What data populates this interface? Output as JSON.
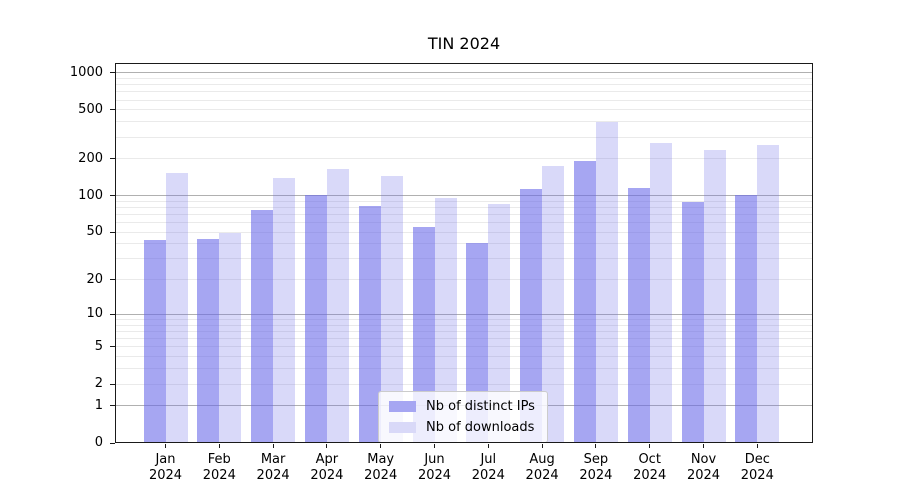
{
  "title": "TIN 2024",
  "background_color": "#ffffff",
  "chart_data": {
    "type": "bar",
    "title": "TIN 2024",
    "xlabel": "",
    "ylabel": "",
    "yscale": "log1p",
    "ylim": [
      0,
      1200
    ],
    "yticks": [
      0,
      1,
      2,
      5,
      10,
      20,
      50,
      100,
      200,
      500,
      1000
    ],
    "grid": {
      "major_gridlines": [
        1,
        10,
        100,
        1000
      ],
      "minor_multiples_per_decade": [
        2,
        3,
        4,
        5,
        6,
        7,
        8,
        9
      ],
      "minor_decades": [
        1,
        10,
        100
      ]
    },
    "categories": [
      "Jan",
      "Feb",
      "Mar",
      "Apr",
      "May",
      "Jun",
      "Jul",
      "Aug",
      "Sep",
      "Oct",
      "Nov",
      "Dec"
    ],
    "year_label": "2024",
    "series": [
      {
        "name": "Nb of distinct IPs",
        "slug": "distinct-ips",
        "base_color": "#6666e8",
        "alpha": 0.58,
        "color_on_white": "#a6a6f2",
        "values": [
          43,
          44,
          77,
          101,
          83,
          55,
          41,
          113,
          192,
          115,
          89,
          102
        ]
      },
      {
        "name": "Nb of downloads",
        "slug": "downloads",
        "base_color": "#6666e8",
        "alpha": 0.25,
        "color_on_white": "#d9d9f8",
        "values": [
          152,
          49,
          140,
          165,
          145,
          95,
          85,
          175,
          400,
          270,
          237,
          261
        ]
      }
    ],
    "legend": {
      "position": "lower center",
      "entries": [
        "Nb of distinct IPs",
        "Nb of downloads"
      ]
    }
  }
}
